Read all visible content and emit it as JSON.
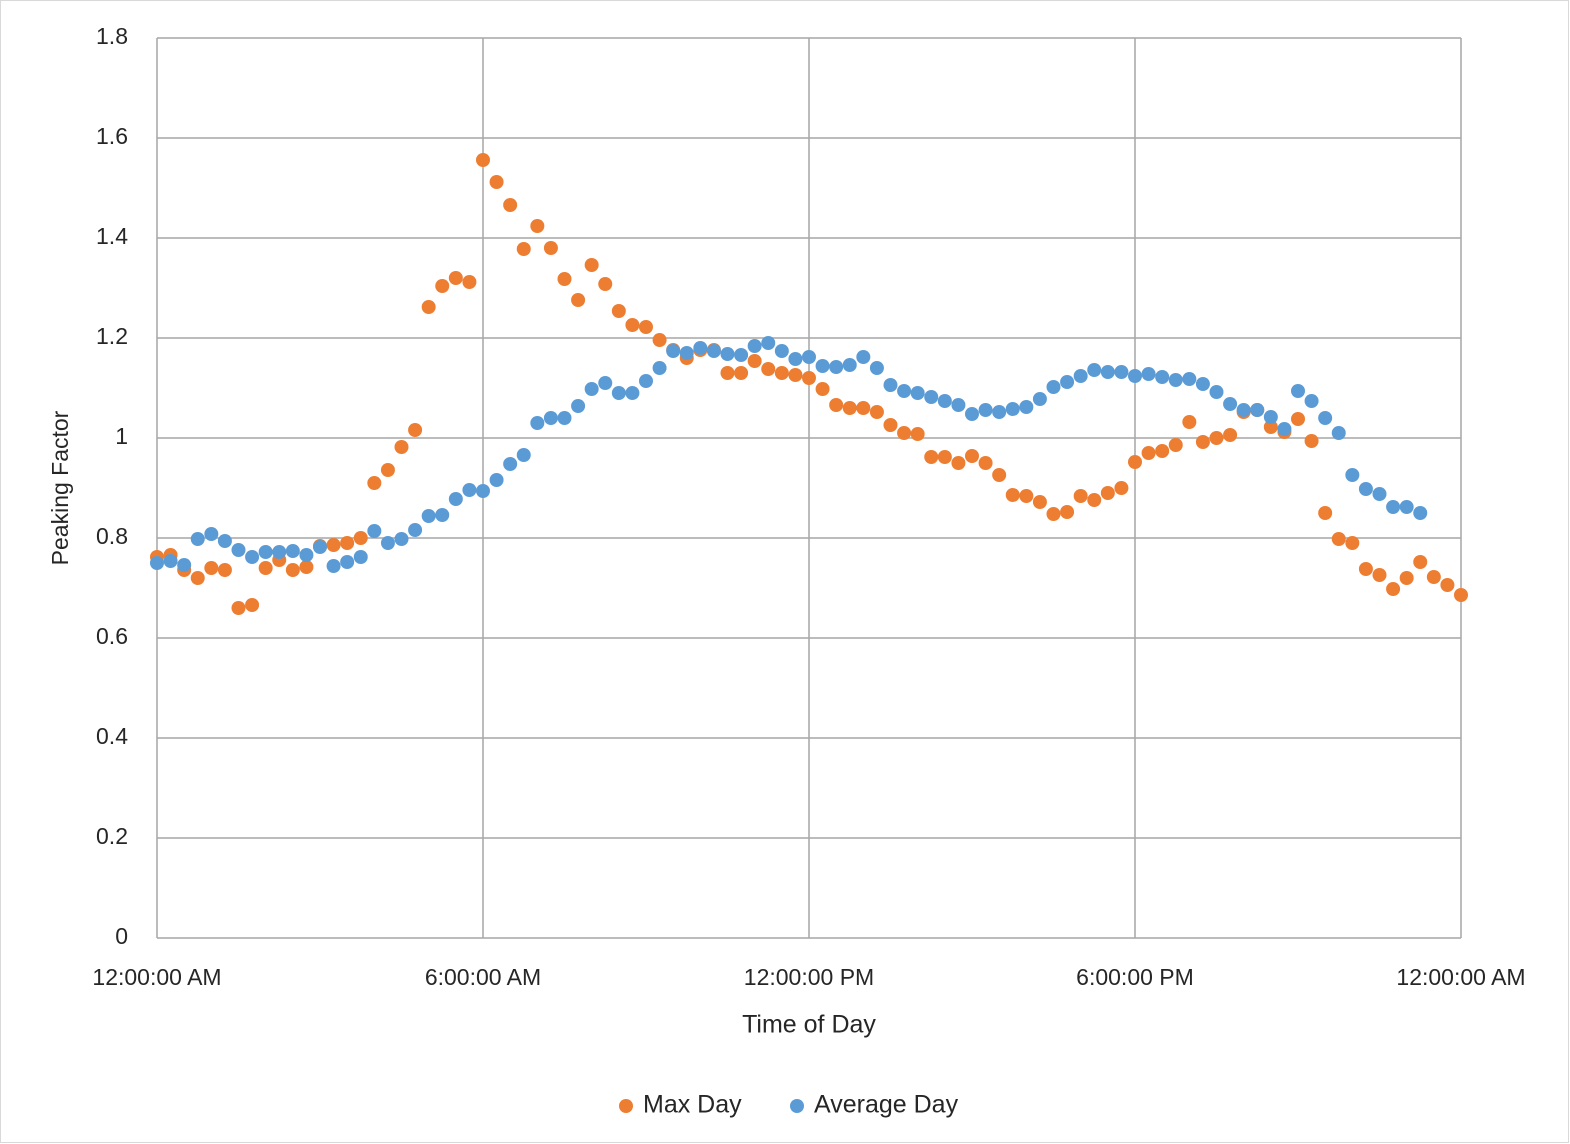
{
  "chart_data": {
    "type": "scatter",
    "x_label": "Time of Day",
    "y_label": "Peaking Factor",
    "xlim": [
      0,
      24
    ],
    "xticks": [
      {
        "value": 0,
        "label": "12:00:00 AM"
      },
      {
        "value": 6,
        "label": "6:00:00 AM"
      },
      {
        "value": 12,
        "label": "12:00:00 PM"
      },
      {
        "value": 18,
        "label": "6:00:00 PM"
      },
      {
        "value": 24,
        "label": "12:00:00 AM"
      }
    ],
    "ylim": [
      0,
      1.8
    ],
    "yticks": [
      0,
      0.2,
      0.4,
      0.6,
      0.8,
      1,
      1.2,
      1.4,
      1.6,
      1.8
    ],
    "grid": true,
    "legend": "bottom",
    "series": [
      {
        "name": "Max Day",
        "color": "#ed7d31",
        "x": [
          0,
          0.25,
          0.5,
          0.75,
          1,
          1.25,
          1.5,
          1.75,
          2,
          2.25,
          2.5,
          2.75,
          3,
          3.25,
          3.5,
          3.75,
          4,
          4.25,
          4.5,
          4.75,
          5,
          5.25,
          5.5,
          5.75,
          6,
          6.25,
          6.5,
          6.75,
          7,
          7.25,
          7.5,
          7.75,
          8,
          8.25,
          8.5,
          8.75,
          9,
          9.25,
          9.5,
          9.75,
          10,
          10.25,
          10.5,
          10.75,
          11,
          11.25,
          11.5,
          11.75,
          12,
          12.25,
          12.5,
          12.75,
          13,
          13.25,
          13.5,
          13.75,
          14,
          14.25,
          14.5,
          14.75,
          15,
          15.25,
          15.5,
          15.75,
          16,
          16.25,
          16.5,
          16.75,
          17,
          17.25,
          17.5,
          17.75,
          18,
          18.25,
          18.5,
          18.75,
          19,
          19.25,
          19.5,
          19.75,
          20,
          20.25,
          20.5,
          20.75,
          21,
          21.25,
          21.5,
          21.75,
          22,
          22.25,
          22.5,
          22.75,
          23,
          23.25,
          23.5,
          23.75,
          24
        ],
        "values": [
          0.762,
          0.766,
          0.736,
          0.72,
          0.74,
          0.736,
          0.66,
          0.666,
          0.74,
          0.756,
          0.736,
          0.742,
          0.784,
          0.786,
          0.79,
          0.8,
          0.91,
          0.936,
          0.982,
          1.016,
          1.262,
          1.304,
          1.32,
          1.312,
          1.556,
          1.512,
          1.466,
          1.378,
          1.424,
          1.38,
          1.318,
          1.276,
          1.346,
          1.308,
          1.254,
          1.226,
          1.222,
          1.196,
          1.176,
          1.16,
          1.176,
          1.176,
          1.13,
          1.13,
          1.154,
          1.138,
          1.13,
          1.126,
          1.12,
          1.098,
          1.066,
          1.06,
          1.06,
          1.052,
          1.026,
          1.01,
          1.008,
          0.962,
          0.962,
          0.95,
          0.964,
          0.95,
          0.926,
          0.886,
          0.884,
          0.872,
          0.848,
          0.852,
          0.884,
          0.876,
          0.89,
          0.9,
          0.952,
          0.97,
          0.974,
          0.986,
          1.032,
          0.992,
          1.0,
          1.006,
          1.052,
          1.056,
          1.022,
          1.012,
          1.038,
          0.994,
          0.85,
          0.798,
          0.79,
          0.738,
          0.726,
          0.698,
          0.72,
          0.752,
          0.722,
          0.706,
          0.686
        ]
      },
      {
        "name": "Average Day",
        "color": "#5b9bd5",
        "x": [
          0,
          0.25,
          0.5,
          0.75,
          1,
          1.25,
          1.5,
          1.75,
          2,
          2.25,
          2.5,
          2.75,
          3,
          3.25,
          3.5,
          3.75,
          4,
          4.25,
          4.5,
          4.75,
          5,
          5.25,
          5.5,
          5.75,
          6,
          6.25,
          6.5,
          6.75,
          7,
          7.25,
          7.5,
          7.75,
          8,
          8.25,
          8.5,
          8.75,
          9,
          9.25,
          9.5,
          9.75,
          10,
          10.25,
          10.5,
          10.75,
          11,
          11.25,
          11.5,
          11.75,
          12,
          12.25,
          12.5,
          12.75,
          13,
          13.25,
          13.5,
          13.75,
          14,
          14.25,
          14.5,
          14.75,
          15,
          15.25,
          15.5,
          15.75,
          16,
          16.25,
          16.5,
          16.75,
          17,
          17.25,
          17.5,
          17.75,
          18,
          18.25,
          18.5,
          18.75,
          19,
          19.25,
          19.5,
          19.75,
          20,
          20.25,
          20.5,
          20.75,
          21,
          21.25,
          21.5,
          21.75,
          22,
          22.25,
          22.5,
          22.75,
          23,
          23.25
        ],
        "values": [
          0.75,
          0.754,
          0.746,
          0.798,
          0.808,
          0.794,
          0.776,
          0.762,
          0.772,
          0.772,
          0.774,
          0.766,
          0.782,
          0.744,
          0.752,
          0.762,
          0.814,
          0.79,
          0.798,
          0.816,
          0.844,
          0.846,
          0.878,
          0.896,
          0.894,
          0.916,
          0.948,
          0.966,
          1.03,
          1.04,
          1.04,
          1.064,
          1.098,
          1.11,
          1.09,
          1.09,
          1.114,
          1.14,
          1.174,
          1.17,
          1.18,
          1.174,
          1.168,
          1.166,
          1.184,
          1.19,
          1.174,
          1.158,
          1.162,
          1.144,
          1.142,
          1.146,
          1.162,
          1.14,
          1.106,
          1.094,
          1.09,
          1.082,
          1.074,
          1.066,
          1.048,
          1.056,
          1.052,
          1.058,
          1.062,
          1.078,
          1.102,
          1.112,
          1.124,
          1.136,
          1.132,
          1.132,
          1.124,
          1.128,
          1.122,
          1.116,
          1.118,
          1.108,
          1.092,
          1.068,
          1.056,
          1.056,
          1.042,
          1.018,
          1.094,
          1.074,
          1.04,
          1.01,
          0.926,
          0.898,
          0.888,
          0.862,
          0.862,
          0.85
        ]
      }
    ]
  }
}
